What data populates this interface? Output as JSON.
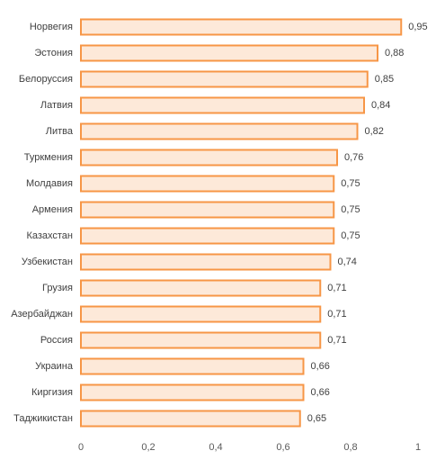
{
  "chart_data": {
    "type": "bar",
    "orientation": "horizontal",
    "categories": [
      "Норвегия",
      "Эстония",
      "Белоруссия",
      "Латвия",
      "Литва",
      "Туркмения",
      "Молдавия",
      "Армения",
      "Казахстан",
      "Узбекистан",
      "Грузия",
      "Азербайджан",
      "Россия",
      "Украина",
      "Киргизия",
      "Таджикистан"
    ],
    "values": [
      0.95,
      0.88,
      0.85,
      0.84,
      0.82,
      0.76,
      0.75,
      0.75,
      0.75,
      0.74,
      0.71,
      0.71,
      0.71,
      0.66,
      0.66,
      0.65
    ],
    "value_labels": [
      "0,95",
      "0,88",
      "0,85",
      "0,84",
      "0,82",
      "0,76",
      "0,75",
      "0,75",
      "0,75",
      "0,74",
      "0,71",
      "0,71",
      "0,71",
      "0,66",
      "0,66",
      "0,65"
    ],
    "xlim": [
      0,
      1
    ],
    "x_ticks": [
      0,
      0.2,
      0.4,
      0.6,
      0.8,
      1
    ],
    "x_tick_labels": [
      "0",
      "0,2",
      "0,4",
      "0,6",
      "0,8",
      "1"
    ],
    "title": "",
    "xlabel": "",
    "ylabel": "",
    "grid": false,
    "legend": "none",
    "colors": {
      "bar_fill": "#FDE9D9",
      "bar_stroke": "#F79646",
      "text": "#404040",
      "tick_text": "#595959"
    }
  }
}
